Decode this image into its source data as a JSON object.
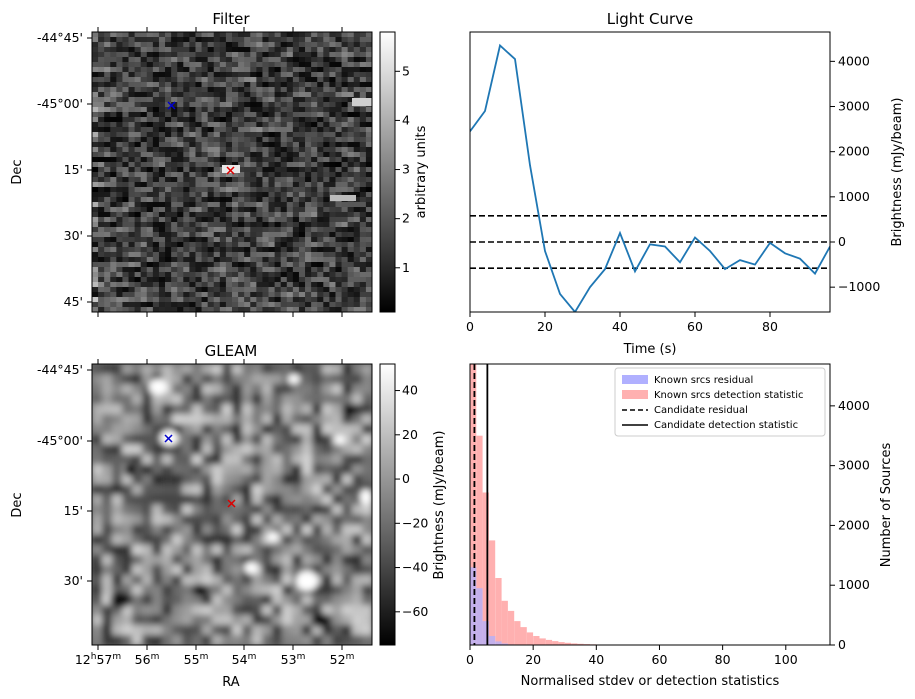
{
  "chart_data": [
    {
      "type": "heatmap",
      "title": "Filter",
      "xlabel": "",
      "ylabel": "Dec",
      "y_tick_labels": [
        "-44°45'",
        "-45°00'",
        "15'",
        "30'",
        "45'"
      ],
      "colorbar": {
        "label": "arbitrary units",
        "range": [
          0.1,
          5.8
        ],
        "tick_labels": [
          "1",
          "2",
          "3",
          "4",
          "5"
        ]
      },
      "markers": [
        {
          "name": "reference",
          "symbol": "x",
          "color": "#0000cc"
        },
        {
          "name": "candidate",
          "symbol": "x",
          "color": "#dd0000"
        }
      ]
    },
    {
      "type": "line",
      "title": "Light Curve",
      "xlabel": "Time (s)",
      "ylabel": "Brightness (mJy/beam)",
      "xlim": [
        0,
        96
      ],
      "ylim": [
        -1550,
        4650
      ],
      "x_ticks": [
        0,
        20,
        40,
        60,
        80
      ],
      "y_ticks": [
        -1000,
        0,
        1000,
        2000,
        3000,
        4000
      ],
      "color": "#1f77b4",
      "x": [
        0,
        4,
        8,
        12,
        16,
        20,
        24,
        28,
        32,
        36,
        40,
        44,
        48,
        52,
        56,
        60,
        64,
        68,
        72,
        76,
        80,
        84,
        88,
        92,
        96
      ],
      "values": [
        2450,
        2900,
        4350,
        4050,
        1700,
        -200,
        -1150,
        -1550,
        -1000,
        -600,
        200,
        -650,
        -50,
        -100,
        -450,
        100,
        -200,
        -600,
        -400,
        -500,
        -20,
        -250,
        -370,
        -700,
        -100
      ],
      "hlines": [
        {
          "y": 580,
          "style": "dashed"
        },
        {
          "y": 0,
          "style": "dashed"
        },
        {
          "y": -580,
          "style": "dashed"
        }
      ]
    },
    {
      "type": "heatmap",
      "title": "GLEAM",
      "xlabel": "RA",
      "ylabel": "Dec",
      "y_tick_labels": [
        "-44°45'",
        "-45°00'",
        "15'",
        "30'"
      ],
      "x_tick_labels": [
        "12h57m",
        "56m",
        "55m",
        "54m",
        "53m",
        "52m"
      ],
      "colorbar": {
        "label": "Brightness (mJy/beam)",
        "range": [
          -75,
          52
        ],
        "tick_labels": [
          "−60",
          "−40",
          "−20",
          "0",
          "20",
          "40"
        ]
      },
      "markers": [
        {
          "name": "reference",
          "symbol": "x",
          "color": "#0000cc"
        },
        {
          "name": "candidate",
          "symbol": "x",
          "color": "#dd0000"
        }
      ]
    },
    {
      "type": "bar",
      "title": "",
      "xlabel": "Normalised stdev or detection statistics",
      "ylabel": "Number of Sources",
      "xlim": [
        0,
        114
      ],
      "ylim": [
        0,
        4700
      ],
      "x_ticks": [
        0,
        20,
        40,
        60,
        80,
        100
      ],
      "y_ticks": [
        0,
        1000,
        2000,
        3000,
        4000
      ],
      "bin_width": 2,
      "series": [
        {
          "name": "Known srcs residual",
          "color": "#b0b0ff",
          "bins": [
            0,
            2,
            4,
            6,
            8,
            10,
            12,
            14
          ],
          "values": [
            1300,
            950,
            400,
            150,
            60,
            25,
            10,
            5
          ]
        },
        {
          "name": "Known srcs detection statistic",
          "color": "#ffb0b0",
          "bins": [
            0,
            2,
            4,
            6,
            8,
            10,
            12,
            14,
            16,
            18,
            20,
            22,
            24,
            26,
            28,
            30,
            32,
            34,
            36,
            38,
            40,
            42,
            44,
            50,
            56,
            60,
            70,
            84,
            106
          ],
          "values": [
            4700,
            3500,
            2550,
            1750,
            1120,
            740,
            570,
            400,
            300,
            210,
            150,
            110,
            85,
            65,
            48,
            36,
            26,
            20,
            15,
            12,
            9,
            7,
            5,
            4,
            3,
            2,
            3,
            2,
            4
          ]
        }
      ],
      "vlines": [
        {
          "name": "Candidate residual",
          "x": 1.4,
          "style": "dashed"
        },
        {
          "name": "Candidate detection statistic",
          "x": 5.5,
          "style": "solid"
        }
      ],
      "legend_location": "top-right",
      "extra_left_label": "Brightness (mJy/beam)"
    }
  ]
}
